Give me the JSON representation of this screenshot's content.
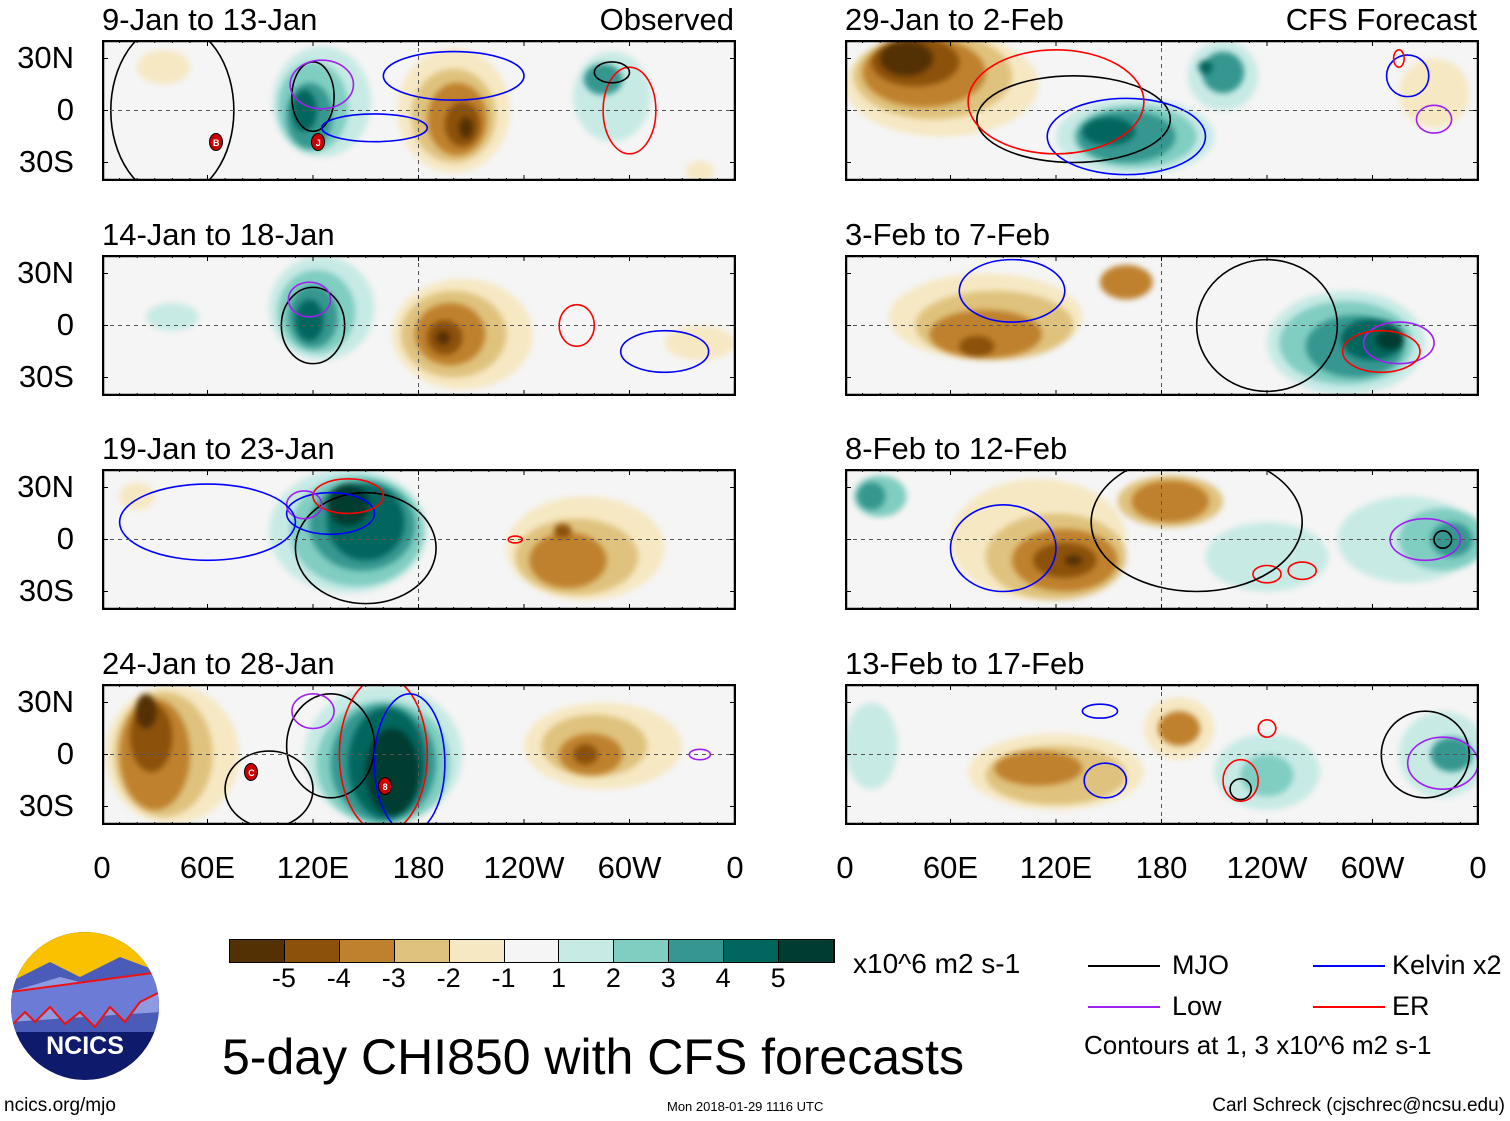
{
  "chart_data": [
    {
      "type": "heatmap",
      "title": "9-Jan to 13-Jan",
      "label": "Observed"
    },
    {
      "type": "heatmap",
      "title": "14-Jan to 18-Jan"
    },
    {
      "type": "heatmap",
      "title": "19-Jan to 23-Jan"
    },
    {
      "type": "heatmap",
      "title": "24-Jan to 28-Jan"
    },
    {
      "type": "heatmap",
      "title": "29-Jan to 2-Feb",
      "label": "CFS Forecast"
    },
    {
      "type": "heatmap",
      "title": "3-Feb to 7-Feb"
    },
    {
      "type": "heatmap",
      "title": "8-Feb to 12-Feb"
    },
    {
      "type": "heatmap",
      "title": "13-Feb to 17-Feb"
    }
  ],
  "axes": {
    "lat_ticks": [
      "30N",
      "0",
      "30S"
    ],
    "lon_ticks": [
      "0",
      "60E",
      "120E",
      "180",
      "120W",
      "60W",
      "0"
    ],
    "lat_range": [
      -40,
      40
    ],
    "lon_range": [
      0,
      360
    ]
  },
  "colorbar": {
    "labels": [
      "-5",
      "-4",
      "-3",
      "-2",
      "-1",
      "1",
      "2",
      "3",
      "4",
      "5"
    ],
    "colors": [
      "#543005",
      "#8c510a",
      "#bf812d",
      "#dfc27d",
      "#f6e8c3",
      "#f5f5f5",
      "#c7eae5",
      "#80cdc1",
      "#35978f",
      "#01665e",
      "#003c30"
    ],
    "units": "x10^6 m2 s-1"
  },
  "legend": {
    "items": [
      {
        "label": "MJO",
        "color": "#000000"
      },
      {
        "label": "Kelvin x2",
        "color": "#0000ff"
      },
      {
        "label": "Low",
        "color": "#a020f0"
      },
      {
        "label": "ER",
        "color": "#ff0000"
      }
    ],
    "note": "Contours at 1, 3 x10^6 m2 s-1"
  },
  "storms": [
    {
      "panel": 0,
      "label": "B"
    },
    {
      "panel": 0,
      "label": "J"
    },
    {
      "panel": 3,
      "label": "C"
    },
    {
      "panel": 3,
      "label": "8"
    }
  ],
  "title": "5-day CHI850 with CFS forecasts",
  "logo": "NCICS",
  "footer": {
    "url": "ncics.org/mjo",
    "timestamp": "Mon 2018-01-29 1116 UTC",
    "author": "Carl Schreck (cjschrec@ncsu.edu)"
  }
}
